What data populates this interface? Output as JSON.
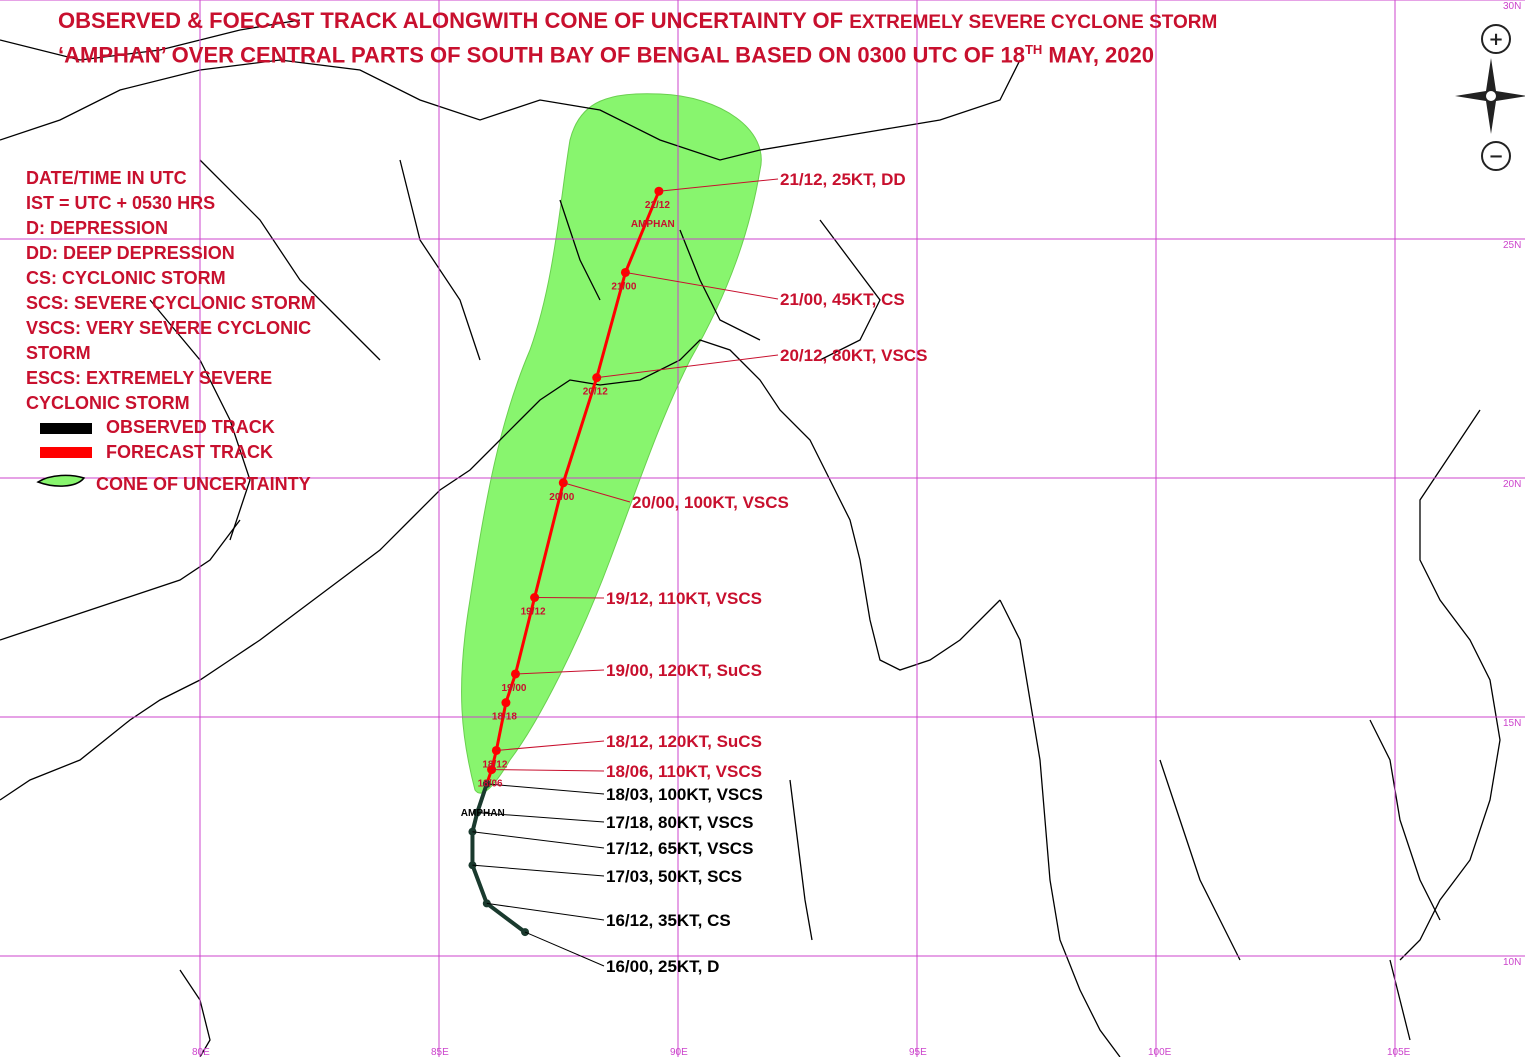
{
  "title": {
    "line1_main": "OBSERVED & FOECAST TRACK ALONGWITH CONE OF UNCERTAINTY OF",
    "line1_tail": "EXTREMELY SEVERE CYCLONE STORM",
    "line2_pre": "‘AMPHAN’ OVER CENTRAL PARTS OF SOUTH BAY OF BENGAL BASED ON 0300 UTC OF 18",
    "line2_sup": "TH",
    "line2_post": " MAY, 2020"
  },
  "legend": {
    "lines": [
      "DATE/TIME IN UTC",
      "IST = UTC + 0530 HRS",
      "D: DEPRESSION",
      "DD: DEEP DEPRESSION",
      "CS: CYCLONIC STORM",
      "SCS: SEVERE CYCLONIC STORM",
      "VSCS: VERY SEVERE CYCLONIC",
      "STORM",
      "ESCS: EXTREMELY SEVERE",
      "CYCLONIC STORM"
    ],
    "observed_label": "OBSERVED TRACK",
    "forecast_label": "FORECAST TRACK",
    "cone_label": "CONE OF UNCERTAINTY"
  },
  "axes": {
    "lon_labels": [
      "80E",
      "85E",
      "90E",
      "95E",
      "100E",
      "105E"
    ],
    "lat_labels": [
      "30N",
      "25N",
      "20N",
      "15N",
      "10N"
    ]
  },
  "storm_name": "AMPHAN",
  "track": {
    "observed": [
      {
        "label": "16/00, 25KT, D",
        "lon": 86.8,
        "lat": 10.5
      },
      {
        "label": "16/12, 35KT, CS",
        "lon": 86.0,
        "lat": 11.1
      },
      {
        "label": "17/03, 50KT, SCS",
        "lon": 85.7,
        "lat": 11.9
      },
      {
        "label": "17/12, 65KT, VSCS",
        "lon": 85.7,
        "lat": 12.6
      },
      {
        "label": "17/18, 80KT, VSCS",
        "lon": 85.8,
        "lat": 13.0
      },
      {
        "label": "18/03, 100KT, VSCS",
        "lon": 86.0,
        "lat": 13.6
      }
    ],
    "forecast": [
      {
        "label": "18/06, 110KT, VSCS",
        "short": "18/06",
        "lon": 86.1,
        "lat": 13.9
      },
      {
        "label": "18/12, 120KT, SuCS",
        "short": "18/12",
        "lon": 86.2,
        "lat": 14.3
      },
      {
        "label": "",
        "short": "18/18",
        "lon": 86.4,
        "lat": 15.3
      },
      {
        "label": "19/00, 120KT, SuCS",
        "short": "19/00",
        "lon": 86.6,
        "lat": 15.9
      },
      {
        "label": "19/12, 110KT, VSCS",
        "short": "19/12",
        "lon": 87.0,
        "lat": 17.5
      },
      {
        "label": "20/00, 100KT, VSCS",
        "short": "20/00",
        "lon": 87.6,
        "lat": 19.9
      },
      {
        "label": "20/12, 80KT, VSCS",
        "short": "20/12",
        "lon": 88.3,
        "lat": 22.1
      },
      {
        "label": "21/00, 45KT, CS",
        "short": "21/00",
        "lon": 88.9,
        "lat": 24.3
      },
      {
        "label": "21/12, 25KT, DD",
        "short": "21/12",
        "lon": 89.6,
        "lat": 26.0
      }
    ]
  },
  "controls": {
    "zoom_in": "+",
    "zoom_out": "−"
  },
  "colors": {
    "title": "#c8102e",
    "cone": "#88f56e",
    "forecast": "#ff0000",
    "observed": "#1a3a2e",
    "grid": "#cc44cc",
    "coast": "#000000"
  }
}
